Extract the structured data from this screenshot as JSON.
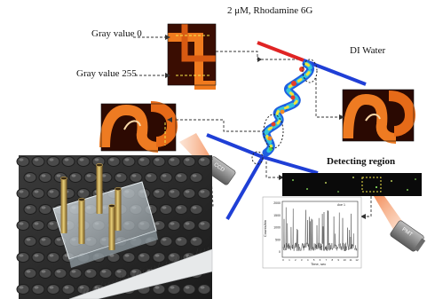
{
  "labels": {
    "title": "2 μM, Rhodamine 6G",
    "gray_top": "Gray value 0",
    "gray_bottom": "Gray value 255",
    "di_water": "DI Water",
    "detecting_region": "Detecting region",
    "ccd": "CCD",
    "pmt": "PMT"
  },
  "plot": {
    "xlabel": "Time, sec",
    "ylabel": "Counts/bin",
    "legend": "Ave 1",
    "y_ticks": [
      "2000",
      "1500",
      "1000",
      "500",
      "0"
    ],
    "x_ticks": [
      "0",
      "1",
      "2",
      "3",
      "4",
      "5",
      "6",
      "7",
      "8",
      "9",
      "10",
      "11",
      "12"
    ]
  },
  "colors": {
    "inlet_channel_red": "#e02424",
    "inlet_channel_blue": "#1f3fd6",
    "outlet_channel_blue": "#1f3fd6",
    "fluorescence": "#f07a1e",
    "ccd_cone": "#f4a070",
    "pmt_cone": "#f4a070"
  }
}
